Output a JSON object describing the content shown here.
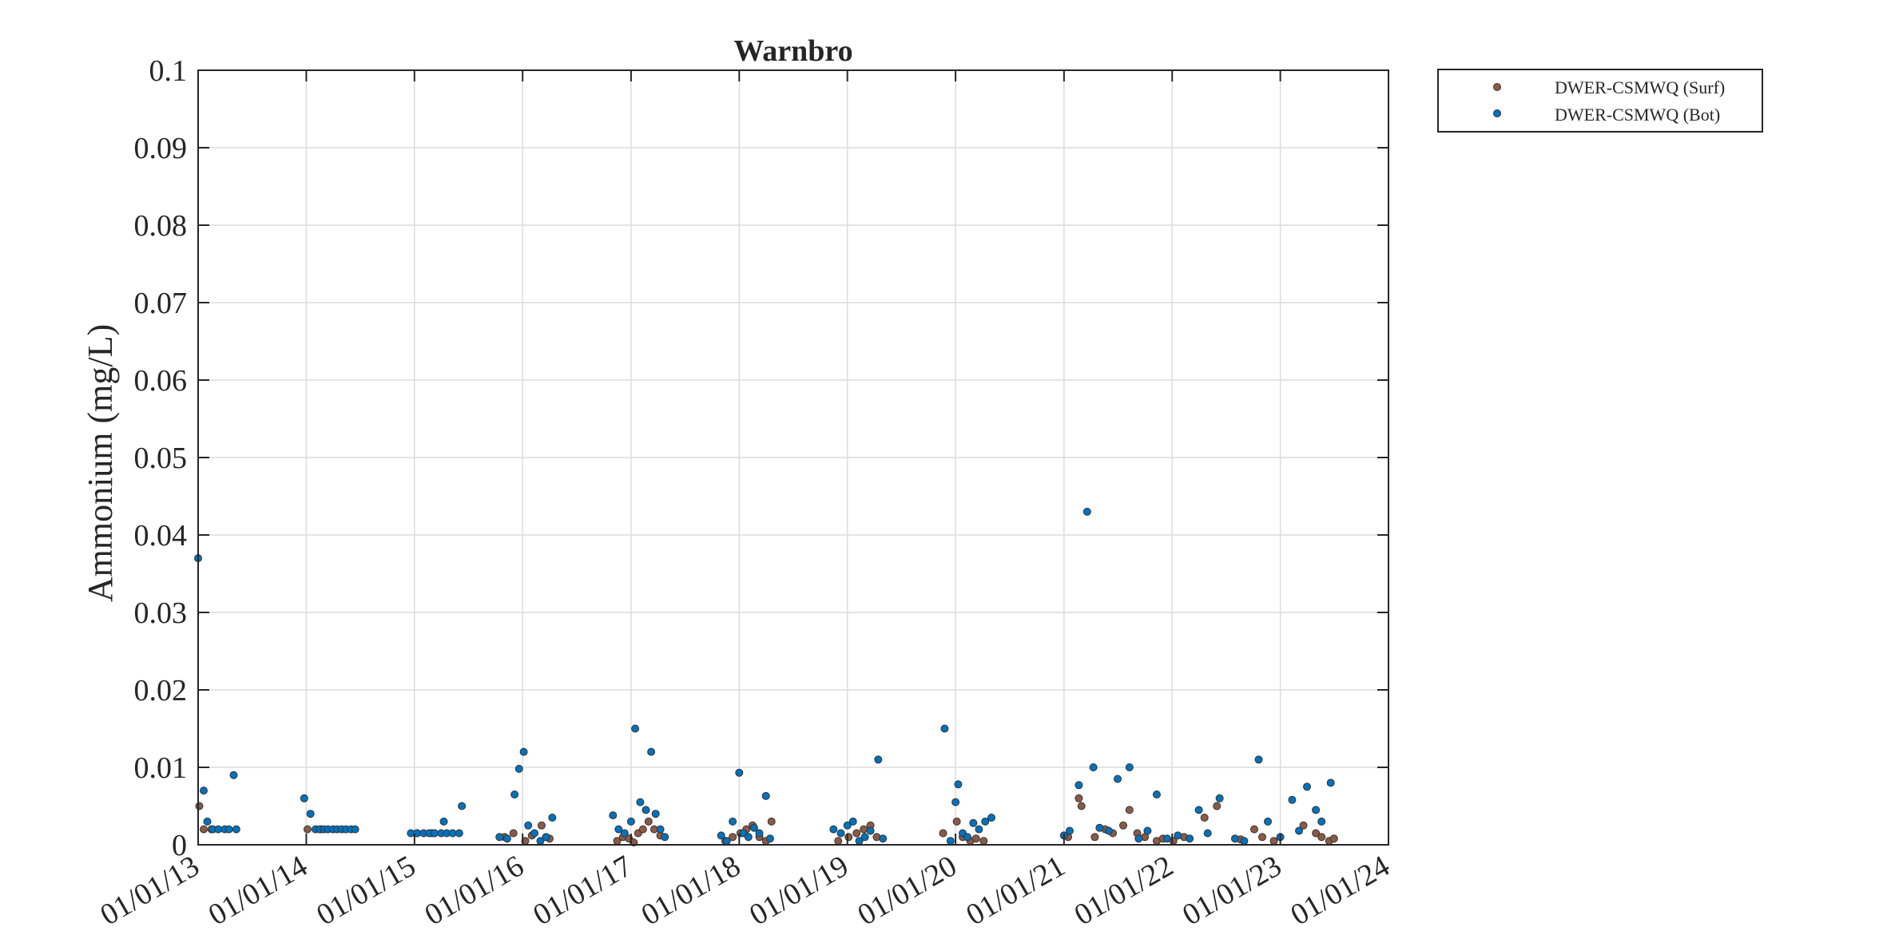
{
  "chart_data": {
    "type": "scatter",
    "title": "Warnbro",
    "ylabel": "Ammonium (mg/L)",
    "xlabel": "",
    "ylim": [
      0,
      0.1
    ],
    "yticks": [
      0,
      0.01,
      0.02,
      0.03,
      0.04,
      0.05,
      0.06,
      0.07,
      0.08,
      0.09,
      0.1
    ],
    "ytick_labels": [
      "0",
      "0.01",
      "0.02",
      "0.03",
      "0.04",
      "0.05",
      "0.06",
      "0.07",
      "0.08",
      "0.09",
      "0.1"
    ],
    "xlim": [
      "2013-01-01",
      "2024-01-01"
    ],
    "xticks": [
      "2013-01-01",
      "2014-01-01",
      "2015-01-01",
      "2016-01-01",
      "2017-01-01",
      "2018-01-01",
      "2019-01-01",
      "2020-01-01",
      "2021-01-01",
      "2022-01-01",
      "2023-01-01",
      "2024-01-01"
    ],
    "xtick_labels": [
      "01/01/13",
      "01/01/14",
      "01/01/15",
      "01/01/16",
      "01/01/17",
      "01/01/18",
      "01/01/19",
      "01/01/20",
      "01/01/21",
      "01/01/22",
      "01/01/23",
      "01/01/24"
    ],
    "grid": true,
    "legend_position": "outside-top-right",
    "series": [
      {
        "name": "DWER-CSMWQ (Surf)",
        "color": "#8c5a46",
        "points": [
          [
            "2013-01-05",
            0.005
          ],
          [
            "2013-01-20",
            0.002
          ],
          [
            "2013-02-15",
            0.002
          ],
          [
            "2014-01-05",
            0.002
          ],
          [
            "2014-02-20",
            0.002
          ],
          [
            "2015-01-10",
            0.0015
          ],
          [
            "2015-03-01",
            0.0015
          ],
          [
            "2015-11-01",
            0.001
          ],
          [
            "2015-12-01",
            0.0015
          ],
          [
            "2016-01-10",
            0.0005
          ],
          [
            "2016-02-01",
            0.0012
          ],
          [
            "2016-03-05",
            0.0025
          ],
          [
            "2016-04-01",
            0.0008
          ],
          [
            "2016-11-15",
            0.0005
          ],
          [
            "2016-12-05",
            0.001
          ],
          [
            "2016-12-25",
            0.0008
          ],
          [
            "2017-01-10",
            0.0003
          ],
          [
            "2017-01-25",
            0.0015
          ],
          [
            "2017-02-10",
            0.002
          ],
          [
            "2017-03-01",
            0.003
          ],
          [
            "2017-03-20",
            0.002
          ],
          [
            "2017-04-10",
            0.0012
          ],
          [
            "2017-11-15",
            0.0005
          ],
          [
            "2017-12-10",
            0.001
          ],
          [
            "2018-01-05",
            0.0015
          ],
          [
            "2018-01-25",
            0.002
          ],
          [
            "2018-02-15",
            0.0025
          ],
          [
            "2018-03-10",
            0.001
          ],
          [
            "2018-04-01",
            0.0005
          ],
          [
            "2018-04-20",
            0.003
          ],
          [
            "2018-12-01",
            0.0005
          ],
          [
            "2019-01-05",
            0.001
          ],
          [
            "2019-02-01",
            0.0015
          ],
          [
            "2019-02-25",
            0.002
          ],
          [
            "2019-03-20",
            0.0025
          ],
          [
            "2019-04-10",
            0.001
          ],
          [
            "2019-11-20",
            0.0015
          ],
          [
            "2020-01-05",
            0.003
          ],
          [
            "2020-01-25",
            0.001
          ],
          [
            "2020-02-20",
            0.0005
          ],
          [
            "2020-03-10",
            0.0008
          ],
          [
            "2020-04-05",
            0.0005
          ],
          [
            "2021-01-15",
            0.001
          ],
          [
            "2021-02-20",
            0.006
          ],
          [
            "2021-03-01",
            0.005
          ],
          [
            "2021-04-15",
            0.001
          ],
          [
            "2021-05-20",
            0.002
          ],
          [
            "2021-06-15",
            0.0015
          ],
          [
            "2021-07-20",
            0.0025
          ],
          [
            "2021-08-10",
            0.0045
          ],
          [
            "2021-09-05",
            0.0015
          ],
          [
            "2021-10-01",
            0.001
          ],
          [
            "2021-11-10",
            0.0005
          ],
          [
            "2021-12-01",
            0.0008
          ],
          [
            "2022-01-05",
            0.0005
          ],
          [
            "2022-02-10",
            0.001
          ],
          [
            "2022-04-20",
            0.0035
          ],
          [
            "2022-06-01",
            0.005
          ],
          [
            "2022-08-20",
            0.0007
          ],
          [
            "2022-10-05",
            0.002
          ],
          [
            "2022-11-01",
            0.001
          ],
          [
            "2022-12-10",
            0.0005
          ],
          [
            "2023-03-20",
            0.0025
          ],
          [
            "2023-05-01",
            0.0015
          ],
          [
            "2023-05-20",
            0.001
          ],
          [
            "2023-06-15",
            0.0005
          ],
          [
            "2023-07-01",
            0.0008
          ]
        ]
      },
      {
        "name": "DWER-CSMWQ (Bot)",
        "color": "#0072bd",
        "points": [
          [
            "2013-01-01",
            0.037
          ],
          [
            "2013-01-20",
            0.007
          ],
          [
            "2013-02-01",
            0.003
          ],
          [
            "2013-02-20",
            0.002
          ],
          [
            "2013-03-10",
            0.002
          ],
          [
            "2013-04-01",
            0.002
          ],
          [
            "2013-04-15",
            0.002
          ],
          [
            "2013-05-01",
            0.009
          ],
          [
            "2013-05-10",
            0.002
          ],
          [
            "2013-12-25",
            0.006
          ],
          [
            "2014-01-15",
            0.004
          ],
          [
            "2014-02-01",
            0.002
          ],
          [
            "2014-02-15",
            0.002
          ],
          [
            "2014-03-01",
            0.002
          ],
          [
            "2014-03-15",
            0.002
          ],
          [
            "2014-04-01",
            0.002
          ],
          [
            "2014-04-15",
            0.002
          ],
          [
            "2014-05-01",
            0.002
          ],
          [
            "2014-05-15",
            0.002
          ],
          [
            "2014-06-01",
            0.002
          ],
          [
            "2014-06-15",
            0.002
          ],
          [
            "2014-12-20",
            0.0015
          ],
          [
            "2015-01-10",
            0.0015
          ],
          [
            "2015-02-01",
            0.0015
          ],
          [
            "2015-02-20",
            0.0015
          ],
          [
            "2015-03-10",
            0.0015
          ],
          [
            "2015-04-01",
            0.0015
          ],
          [
            "2015-04-10",
            0.003
          ],
          [
            "2015-04-20",
            0.0015
          ],
          [
            "2015-05-10",
            0.0015
          ],
          [
            "2015-06-01",
            0.0015
          ],
          [
            "2015-06-10",
            0.005
          ],
          [
            "2015-10-15",
            0.001
          ],
          [
            "2015-11-10",
            0.0008
          ],
          [
            "2015-12-05",
            0.0065
          ],
          [
            "2015-12-20",
            0.0098
          ],
          [
            "2016-01-05",
            0.012
          ],
          [
            "2016-01-20",
            0.0025
          ],
          [
            "2016-02-10",
            0.0015
          ],
          [
            "2016-03-01",
            0.0005
          ],
          [
            "2016-03-20",
            0.001
          ],
          [
            "2016-04-10",
            0.0035
          ],
          [
            "2016-11-01",
            0.0038
          ],
          [
            "2016-11-20",
            0.002
          ],
          [
            "2016-12-10",
            0.0015
          ],
          [
            "2017-01-01",
            0.003
          ],
          [
            "2017-01-15",
            0.015
          ],
          [
            "2017-02-01",
            0.0055
          ],
          [
            "2017-02-20",
            0.0045
          ],
          [
            "2017-03-10",
            0.012
          ],
          [
            "2017-03-25",
            0.004
          ],
          [
            "2017-04-10",
            0.002
          ],
          [
            "2017-04-25",
            0.001
          ],
          [
            "2017-11-01",
            0.0012
          ],
          [
            "2017-11-20",
            0.0005
          ],
          [
            "2017-12-10",
            0.003
          ],
          [
            "2018-01-01",
            0.0093
          ],
          [
            "2018-01-15",
            0.0015
          ],
          [
            "2018-02-01",
            0.001
          ],
          [
            "2018-02-20",
            0.0022
          ],
          [
            "2018-03-10",
            0.0015
          ],
          [
            "2018-04-01",
            0.0063
          ],
          [
            "2018-04-15",
            0.0008
          ],
          [
            "2018-11-15",
            0.002
          ],
          [
            "2018-12-10",
            0.0015
          ],
          [
            "2019-01-01",
            0.0025
          ],
          [
            "2019-01-20",
            0.003
          ],
          [
            "2019-02-10",
            0.0005
          ],
          [
            "2019-03-01",
            0.001
          ],
          [
            "2019-03-20",
            0.0018
          ],
          [
            "2019-04-15",
            0.011
          ],
          [
            "2019-05-01",
            0.0008
          ],
          [
            "2019-11-25",
            0.015
          ],
          [
            "2019-12-15",
            0.0005
          ],
          [
            "2020-01-01",
            0.0055
          ],
          [
            "2020-01-10",
            0.0078
          ],
          [
            "2020-01-25",
            0.0015
          ],
          [
            "2020-02-10",
            0.001
          ],
          [
            "2020-03-01",
            0.0028
          ],
          [
            "2020-03-20",
            0.002
          ],
          [
            "2020-04-10",
            0.003
          ],
          [
            "2020-05-01",
            0.0035
          ],
          [
            "2021-01-01",
            0.0012
          ],
          [
            "2021-01-20",
            0.0018
          ],
          [
            "2021-02-20",
            0.0077
          ],
          [
            "2021-03-20",
            0.043
          ],
          [
            "2021-04-10",
            0.01
          ],
          [
            "2021-05-01",
            0.0022
          ],
          [
            "2021-06-01",
            0.0018
          ],
          [
            "2021-07-01",
            0.0085
          ],
          [
            "2021-08-10",
            0.01
          ],
          [
            "2021-09-10",
            0.0008
          ],
          [
            "2021-10-10",
            0.0018
          ],
          [
            "2021-11-10",
            0.0065
          ],
          [
            "2021-12-15",
            0.0008
          ],
          [
            "2022-01-20",
            0.0012
          ],
          [
            "2022-03-01",
            0.0008
          ],
          [
            "2022-04-01",
            0.0045
          ],
          [
            "2022-05-01",
            0.0015
          ],
          [
            "2022-06-10",
            0.006
          ],
          [
            "2022-08-01",
            0.0008
          ],
          [
            "2022-09-01",
            0.0005
          ],
          [
            "2022-10-20",
            0.011
          ],
          [
            "2022-11-20",
            0.003
          ],
          [
            "2023-01-01",
            0.001
          ],
          [
            "2023-02-10",
            0.0058
          ],
          [
            "2023-03-05",
            0.0018
          ],
          [
            "2023-04-01",
            0.0075
          ],
          [
            "2023-05-01",
            0.0045
          ],
          [
            "2023-05-20",
            0.003
          ],
          [
            "2023-06-20",
            0.008
          ]
        ]
      }
    ]
  }
}
